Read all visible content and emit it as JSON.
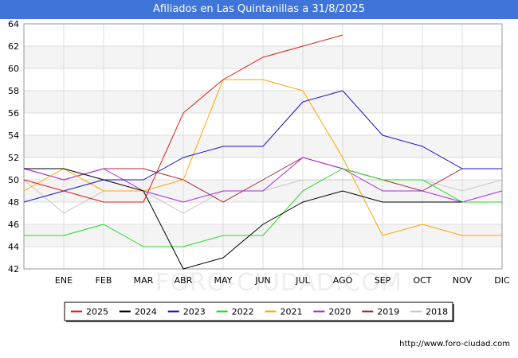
{
  "header": {
    "title": "Afiliados en Las Quintanillas a 31/8/2025"
  },
  "footer": {
    "url": "http://www.foro-ciudad.com"
  },
  "watermark": "FORO-CIUDAD.COM",
  "chart_data": {
    "type": "line",
    "title": "Afiliados en Las Quintanillas a 31/8/2025",
    "xlabel": "",
    "ylabel": "",
    "categories": [
      "",
      "ENE",
      "FEB",
      "MAR",
      "ABR",
      "MAY",
      "JUN",
      "JUL",
      "AGO",
      "SEP",
      "OCT",
      "NOV",
      "DIC"
    ],
    "ylim": [
      42,
      64
    ],
    "yticks": [
      42,
      44,
      46,
      48,
      50,
      52,
      54,
      56,
      58,
      60,
      62,
      64
    ],
    "grid": true,
    "legend_position": "bottom",
    "series": [
      {
        "name": "2025",
        "color": "#e01a1a",
        "values": [
          50,
          49,
          48,
          48,
          56,
          59,
          61,
          62,
          63,
          null,
          null,
          null,
          null
        ]
      },
      {
        "name": "2024",
        "color": "#000000",
        "values": [
          51,
          51,
          50,
          49,
          42,
          43,
          46,
          48,
          49,
          48,
          48,
          48,
          null
        ]
      },
      {
        "name": "2023",
        "color": "#1515c8",
        "values": [
          48,
          49,
          50,
          50,
          52,
          53,
          53,
          57,
          58,
          54,
          53,
          51,
          51
        ]
      },
      {
        "name": "2022",
        "color": "#22dd22",
        "values": [
          45,
          45,
          46,
          44,
          44,
          45,
          45,
          49,
          51,
          50,
          50,
          48,
          48
        ]
      },
      {
        "name": "2021",
        "color": "#ffa500",
        "values": [
          49,
          51,
          49,
          49,
          50,
          59,
          59,
          58,
          52,
          45,
          46,
          45,
          45
        ]
      },
      {
        "name": "2020",
        "color": "#a42ae0",
        "values": [
          51,
          50,
          51,
          49,
          48,
          49,
          49,
          52,
          51,
          49,
          49,
          48,
          49
        ]
      },
      {
        "name": "2019",
        "color": "#a52a2a",
        "values": [
          51,
          50,
          51,
          51,
          50,
          48,
          50,
          52,
          51,
          50,
          49,
          51,
          51
        ]
      },
      {
        "name": "2018",
        "color": "#c8c8c8",
        "values": [
          50,
          47,
          49,
          49,
          47,
          49,
          49,
          50,
          50,
          50,
          50,
          49,
          50
        ]
      }
    ]
  }
}
